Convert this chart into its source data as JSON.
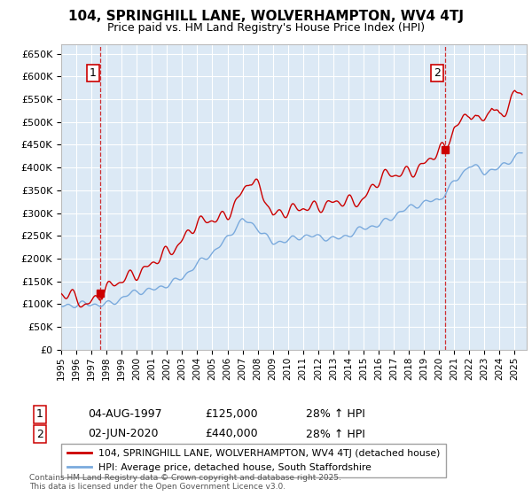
{
  "title": "104, SPRINGHILL LANE, WOLVERHAMPTON, WV4 4TJ",
  "subtitle": "Price paid vs. HM Land Registry's House Price Index (HPI)",
  "background_color": "#ffffff",
  "plot_bg_color": "#dce9f5",
  "red_line_color": "#cc0000",
  "blue_line_color": "#7aaadd",
  "grid_color": "#ffffff",
  "ylim": [
    0,
    670000
  ],
  "legend_entries": [
    "104, SPRINGHILL LANE, WOLVERHAMPTON, WV4 4TJ (detached house)",
    "HPI: Average price, detached house, South Staffordshire"
  ],
  "annotation1": {
    "num": "1",
    "date": "04-AUG-1997",
    "price": "£125,000",
    "note": "28% ↑ HPI"
  },
  "annotation2": {
    "num": "2",
    "date": "02-JUN-2020",
    "price": "£440,000",
    "note": "28% ↑ HPI"
  },
  "footnote": "Contains HM Land Registry data © Crown copyright and database right 2025.\nThis data is licensed under the Open Government Licence v3.0.",
  "sale1_year": 1997.6,
  "sale1_price": 125000,
  "sale2_year": 2020.4,
  "sale2_price": 440000,
  "vline1_year": 1997.6,
  "vline2_year": 2020.4
}
